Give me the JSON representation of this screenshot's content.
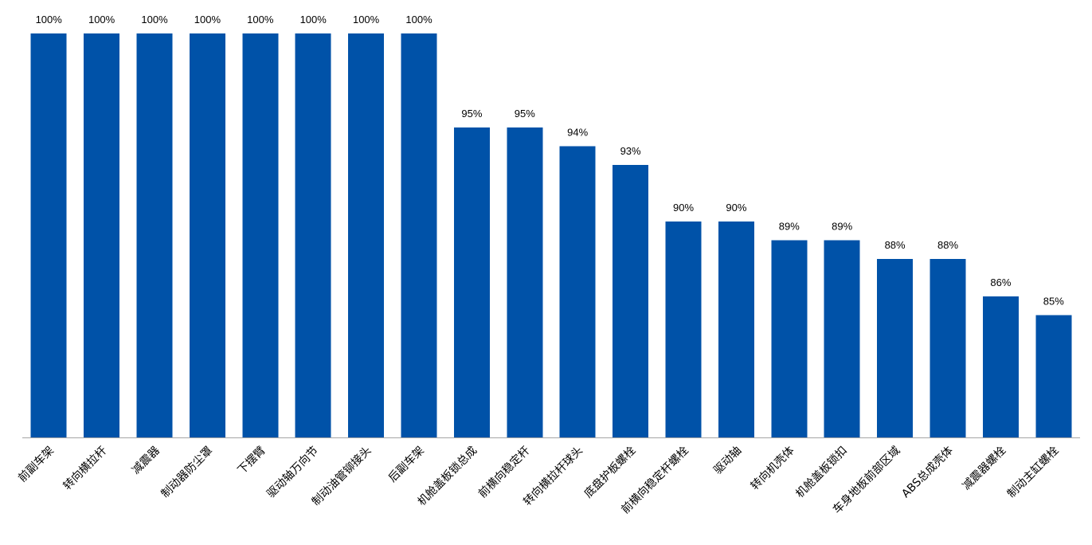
{
  "chart_data": {
    "type": "bar",
    "title": "",
    "xlabel": "",
    "ylabel": "",
    "categories": [
      "前副车架",
      "转向横拉杆",
      "减震器",
      "制动器防尘罩",
      "下摆臂",
      "驱动轴万向节",
      "制动油管铆接头",
      "后副车架",
      "机舱盖板锁总成",
      "前横向稳定杆",
      "转向横拉杆球头",
      "底盘护板螺栓",
      "前横向稳定杆螺栓",
      "驱动轴",
      "转向机壳体",
      "机舱盖板锁扣",
      "车身地板前部区域",
      "ABS总成壳体",
      "减震器螺栓",
      "制动主缸螺栓"
    ],
    "values": [
      100,
      100,
      100,
      100,
      100,
      100,
      100,
      100,
      95,
      95,
      94,
      93,
      90,
      90,
      89,
      89,
      88,
      88,
      86,
      85
    ],
    "data_labels": [
      "100%",
      "100%",
      "100%",
      "100%",
      "100%",
      "100%",
      "100%",
      "100%",
      "95%",
      "95%",
      "94%",
      "93%",
      "90%",
      "90%",
      "89%",
      "89%",
      "88%",
      "88%",
      "86%",
      "85%"
    ],
    "ylim": [
      78.5,
      100
    ],
    "grid": false,
    "legend": "none",
    "bar_color": "#0052A8",
    "axis_color": "#A6A6A6"
  }
}
